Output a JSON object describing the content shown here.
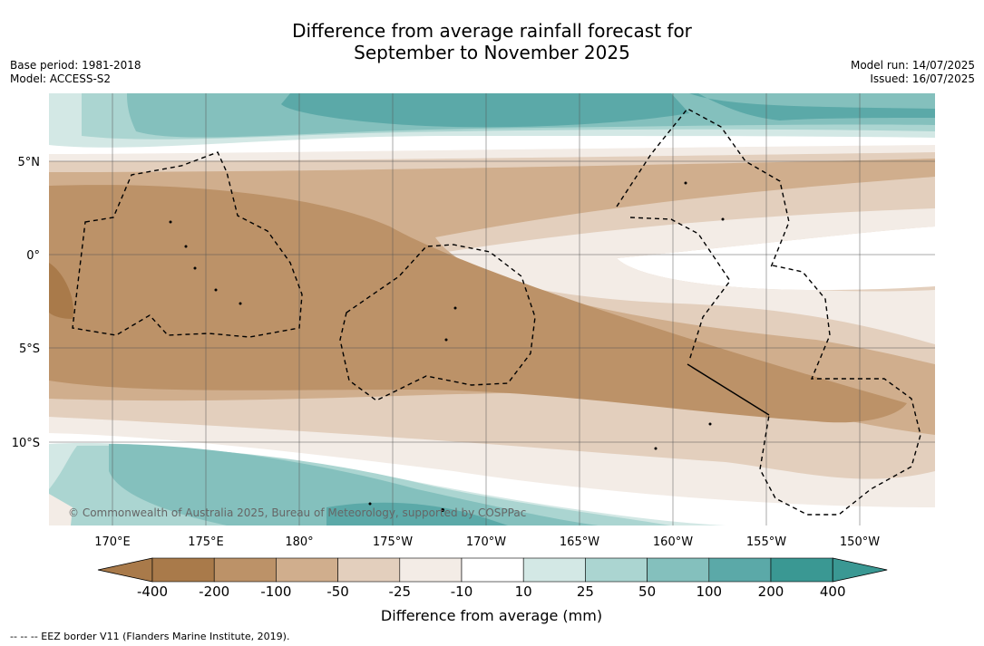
{
  "title_line1": "Difference from average rainfall forecast for",
  "title_line2": "September to November 2025",
  "base_period": "Base period: 1981-2018",
  "model": "Model: ACCESS-S2",
  "model_run": "Model run: 14/07/2025",
  "issued": "Issued: 16/07/2025",
  "copyright": "© Commonwealth of Australia 2025, Bureau of Meteorology, supported by COSPPac",
  "lon_labels": [
    "170°E",
    "175°E",
    "180°",
    "175°W",
    "170°W",
    "165°W",
    "160°W",
    "155°W",
    "150°W"
  ],
  "lat_labels": [
    "5°N",
    "0°",
    "5°S",
    "10°S"
  ],
  "colorbar": {
    "label": "Difference from average (mm)",
    "ticks": [
      "-400",
      "-200",
      "-100",
      "-50",
      "-25",
      "-10",
      "10",
      "25",
      "50",
      "100",
      "200",
      "400"
    ],
    "colors": [
      "#a97a4a",
      "#bc9268",
      "#d0ae8d",
      "#e3cfbd",
      "#f3ece6",
      "#ffffff",
      "#d3e8e5",
      "#abd5d1",
      "#84c0bd",
      "#5ba9a8",
      "#3a9893"
    ]
  },
  "footnote": "-- -- -- EEZ border V11 (Flanders Marine Institute, 2019)."
}
